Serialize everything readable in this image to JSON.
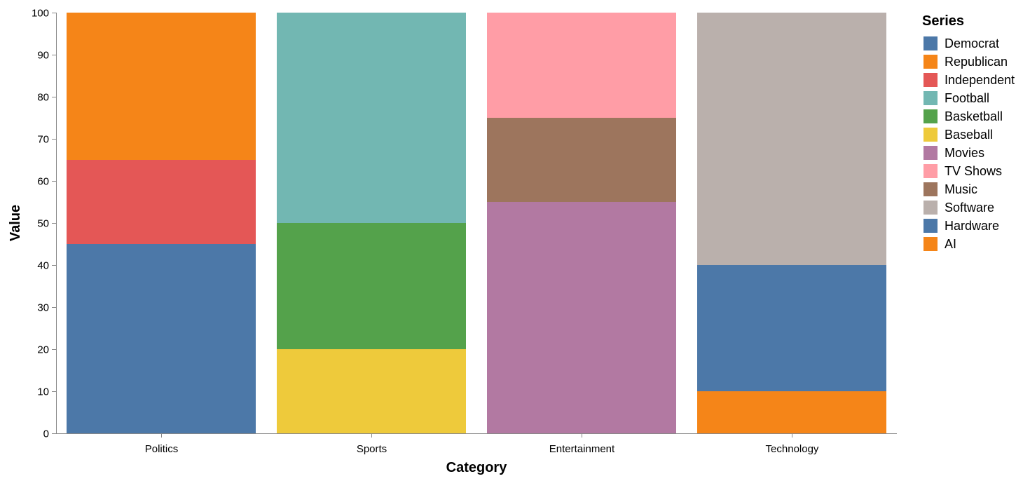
{
  "chart_data": {
    "type": "bar",
    "stacked": true,
    "normalized": true,
    "xlabel": "Category",
    "ylabel": "Value",
    "ylim": [
      0,
      100
    ],
    "yticks": [
      0,
      10,
      20,
      30,
      40,
      50,
      60,
      70,
      80,
      90,
      100
    ],
    "grid": false,
    "legend": {
      "title": "Series",
      "placement": "right"
    },
    "categories": [
      "Politics",
      "Sports",
      "Entertainment",
      "Technology"
    ],
    "series": [
      {
        "name": "Democrat",
        "color": "#4c78a8",
        "category": "Politics",
        "value": 45
      },
      {
        "name": "Republican",
        "color": "#f58518",
        "category": "Politics",
        "value": 35
      },
      {
        "name": "Independent",
        "color": "#e45756",
        "category": "Politics",
        "value": 20
      },
      {
        "name": "Football",
        "color": "#72b7b2",
        "category": "Sports",
        "value": 50
      },
      {
        "name": "Basketball",
        "color": "#54a24b",
        "category": "Sports",
        "value": 30
      },
      {
        "name": "Baseball",
        "color": "#eeca3b",
        "category": "Sports",
        "value": 20
      },
      {
        "name": "Movies",
        "color": "#b279a2",
        "category": "Entertainment",
        "value": 55
      },
      {
        "name": "TV Shows",
        "color": "#ff9da6",
        "category": "Entertainment",
        "value": 25
      },
      {
        "name": "Music",
        "color": "#9d755d",
        "category": "Entertainment",
        "value": 20
      },
      {
        "name": "Software",
        "color": "#bab0ac",
        "category": "Technology",
        "value": 60
      },
      {
        "name": "Hardware",
        "color": "#4c78a8",
        "category": "Technology",
        "value": 30
      },
      {
        "name": "AI",
        "color": "#f58518",
        "category": "Technology",
        "value": 10
      }
    ],
    "stack_order": {
      "Politics": [
        "Democrat",
        "Independent",
        "Republican"
      ],
      "Sports": [
        "Baseball",
        "Basketball",
        "Football"
      ],
      "Entertainment": [
        "Movies",
        "Music",
        "TV Shows"
      ],
      "Technology": [
        "AI",
        "Hardware",
        "Software"
      ]
    }
  }
}
